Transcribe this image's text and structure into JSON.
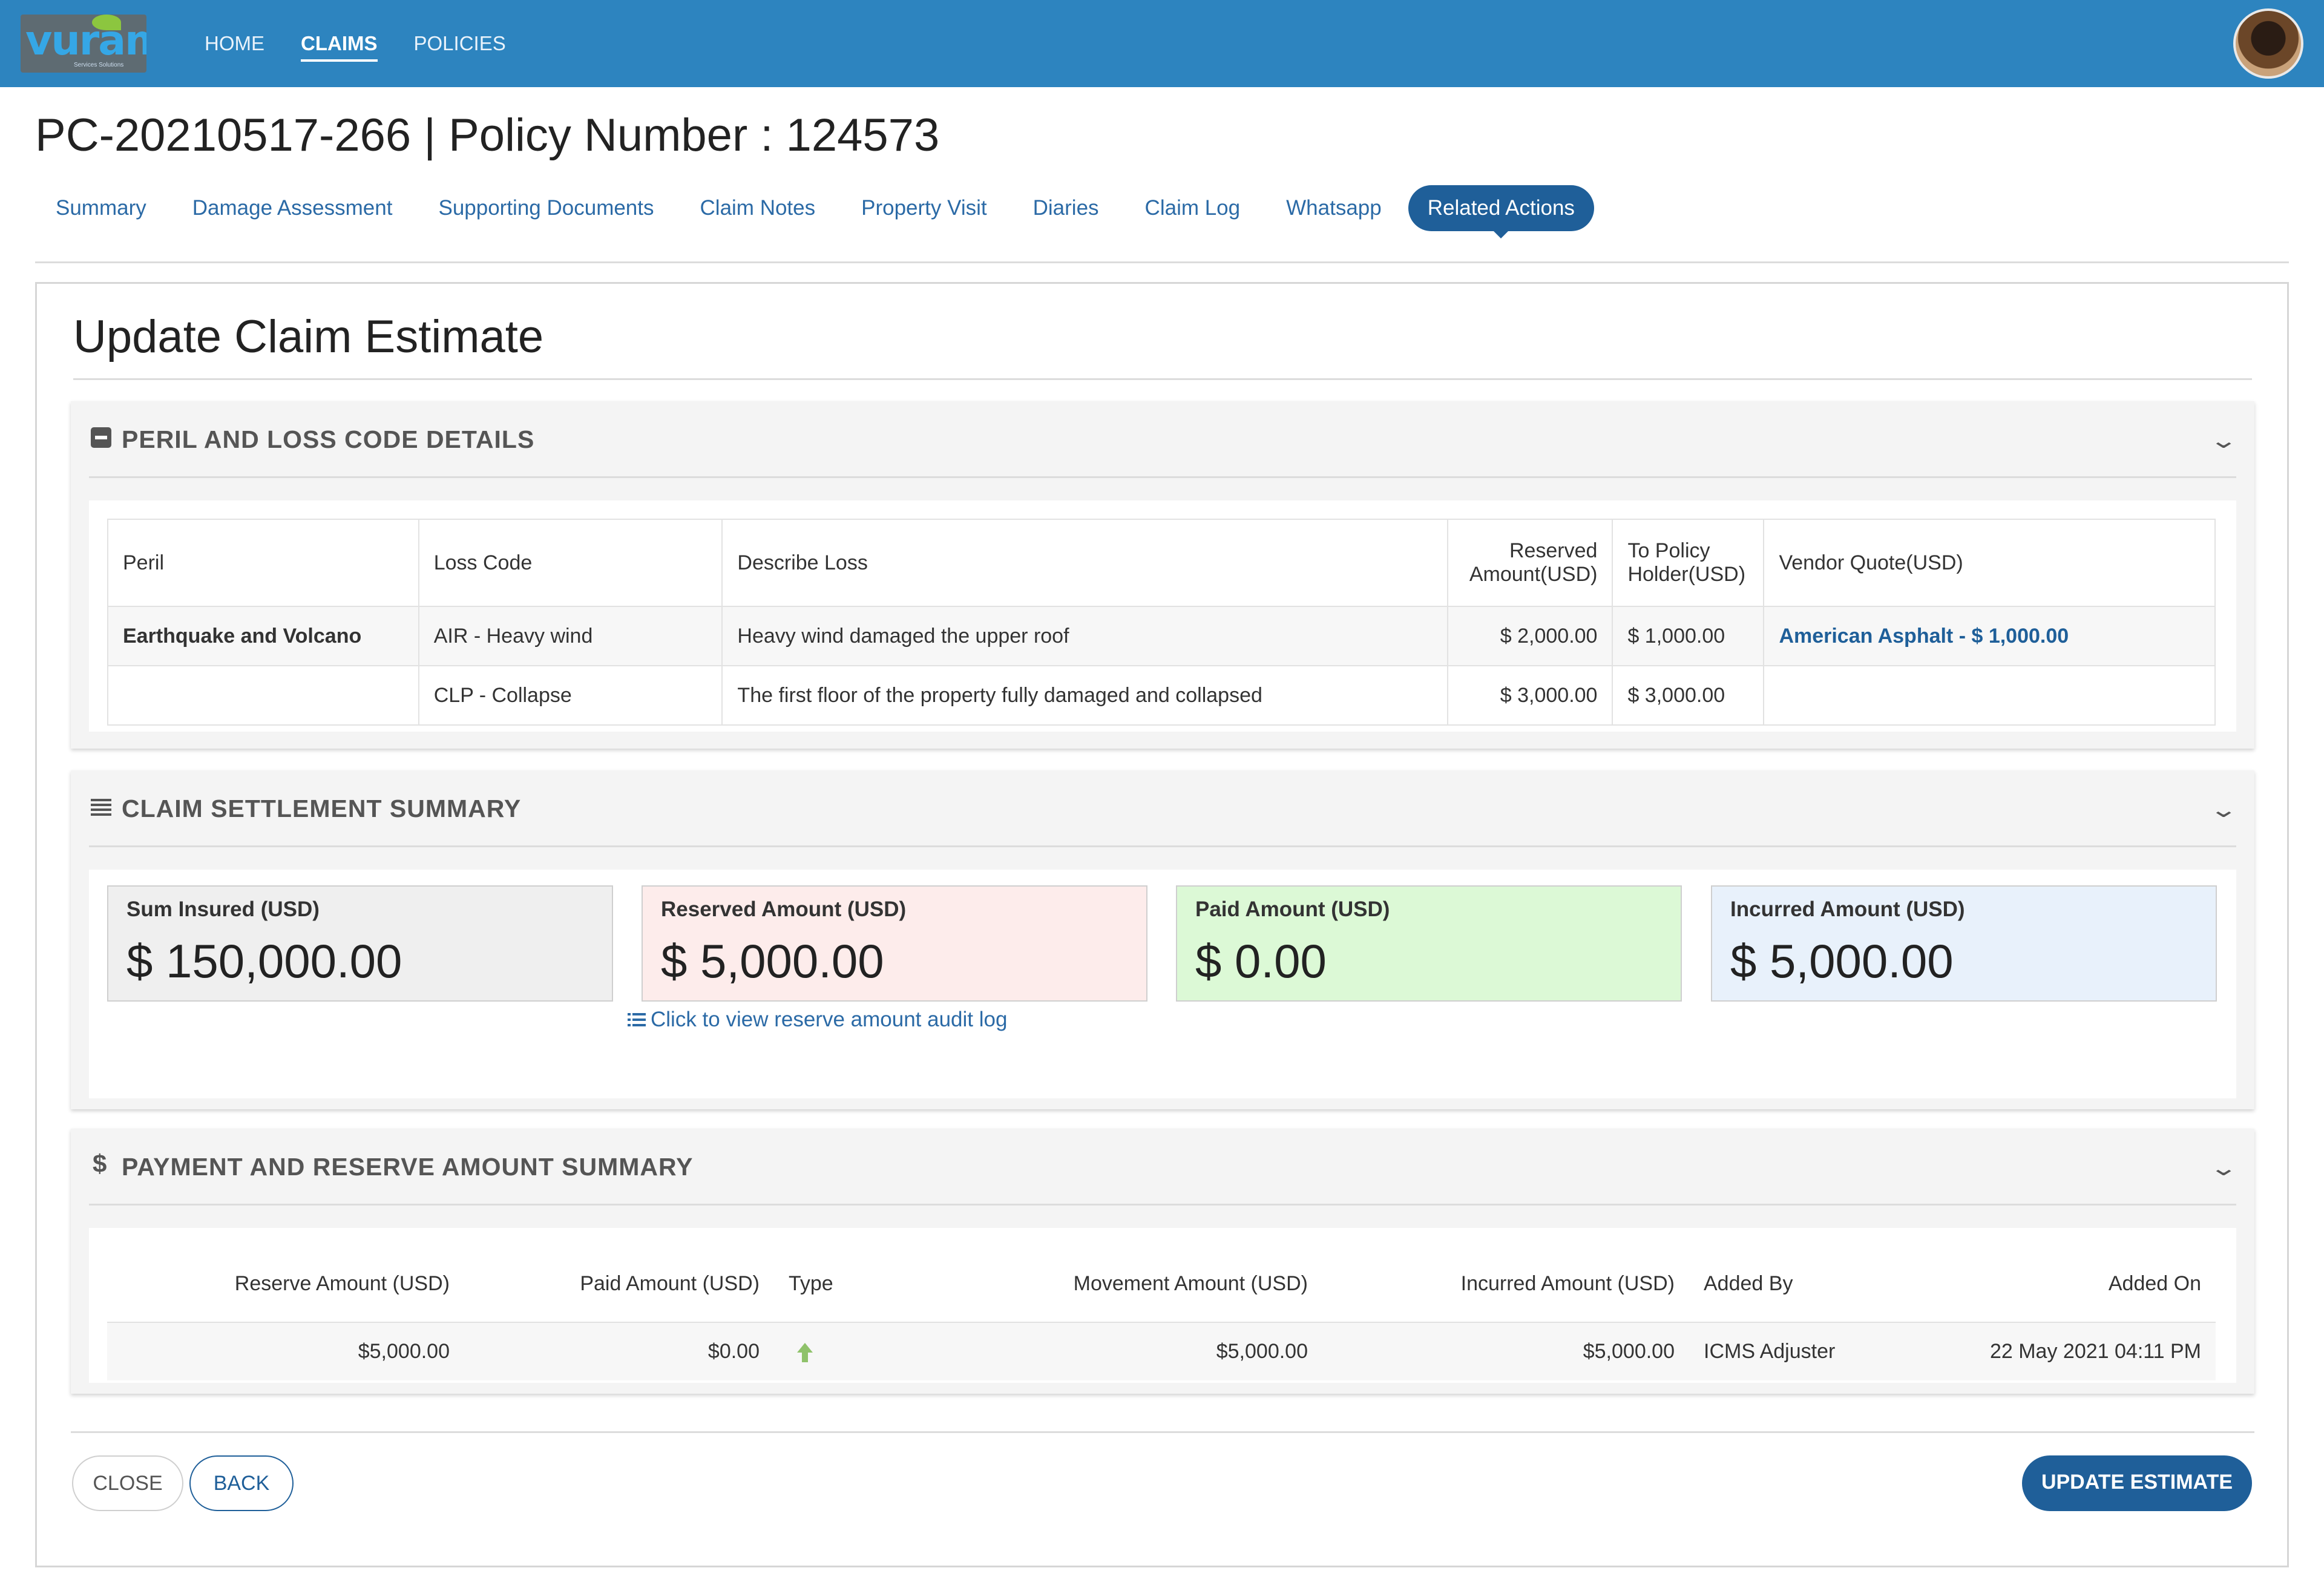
{
  "app": {
    "logo_text": "vuram",
    "logo_tagline": "Services Solutions"
  },
  "nav": {
    "items": [
      {
        "label": "HOME",
        "active": false
      },
      {
        "label": "CLAIMS",
        "active": true
      },
      {
        "label": "POLICIES",
        "active": false
      }
    ]
  },
  "page": {
    "title": "PC-20210517-266 | Policy Number : 124573"
  },
  "tabs": [
    {
      "label": "Summary",
      "active": false
    },
    {
      "label": "Damage Assessment",
      "active": false
    },
    {
      "label": "Supporting Documents",
      "active": false
    },
    {
      "label": "Claim Notes",
      "active": false
    },
    {
      "label": "Property Visit",
      "active": false
    },
    {
      "label": "Diaries",
      "active": false
    },
    {
      "label": "Claim Log",
      "active": false
    },
    {
      "label": "Whatsapp",
      "active": false
    },
    {
      "label": "Related Actions",
      "active": true
    }
  ],
  "card": {
    "title": "Update Claim Estimate"
  },
  "peril_section": {
    "title": "PERIL AND LOSS CODE DETAILS",
    "icon": "minus-square-icon",
    "headers": {
      "peril": "Peril",
      "loss_code": "Loss Code",
      "describe_loss": "Describe Loss",
      "reserved_amount": "Reserved Amount(USD)",
      "to_policy_holder": "To Policy Holder(USD)",
      "vendor_quote": "Vendor Quote(USD)"
    },
    "rows": [
      {
        "peril": "Earthquake and Volcano",
        "loss_code": "AIR - Heavy wind",
        "describe_loss": "Heavy wind damaged the upper roof",
        "reserved_amount": "$ 2,000.00",
        "to_policy_holder": "$ 1,000.00",
        "vendor_quote": "American Asphalt - $ 1,000.00"
      },
      {
        "peril": "",
        "loss_code": "CLP - Collapse",
        "describe_loss": "The first floor of the property fully damaged and collapsed",
        "reserved_amount": "$ 3,000.00",
        "to_policy_holder": "$ 3,000.00",
        "vendor_quote": ""
      }
    ]
  },
  "settlement_section": {
    "title": "CLAIM SETTLEMENT SUMMARY",
    "icon": "lines-icon",
    "stats": {
      "sum_insured": {
        "label": "Sum Insured (USD)",
        "value": "$ 150,000.00",
        "color": "#efefef"
      },
      "reserved": {
        "label": "Reserved Amount (USD)",
        "value": "$ 5,000.00",
        "color": "#fdeceb"
      },
      "paid": {
        "label": "Paid Amount (USD)",
        "value": "$ 0.00",
        "color": "#dcf9d6"
      },
      "incurred": {
        "label": "Incurred Amount (USD)",
        "value": "$ 5,000.00",
        "color": "#e8f1fb"
      }
    },
    "audit_link": "Click to view reserve amount audit log"
  },
  "payment_section": {
    "title": "PAYMENT AND RESERVE AMOUNT SUMMARY",
    "icon": "dollar-icon",
    "headers": {
      "reserve_amount": "Reserve Amount (USD)",
      "paid_amount": "Paid Amount (USD)",
      "type": "Type",
      "movement_amount": "Movement Amount (USD)",
      "incurred_amount": "Incurred Amount (USD)",
      "added_by": "Added By",
      "added_on": "Added On"
    },
    "rows": [
      {
        "reserve_amount": "$5,000.00",
        "paid_amount": "$0.00",
        "type_icon": "arrow-up-icon",
        "movement_amount": "$5,000.00",
        "incurred_amount": "$5,000.00",
        "added_by": "ICMS Adjuster",
        "added_on": "22 May 2021 04:11 PM"
      }
    ]
  },
  "footer": {
    "close_label": "CLOSE",
    "back_label": "BACK",
    "update_label": "UPDATE ESTIMATE"
  },
  "colors": {
    "topbar": "#2d84bf",
    "primary": "#1f5f99",
    "link": "#2b6aa6",
    "type_arrow": "#8fc26a"
  }
}
